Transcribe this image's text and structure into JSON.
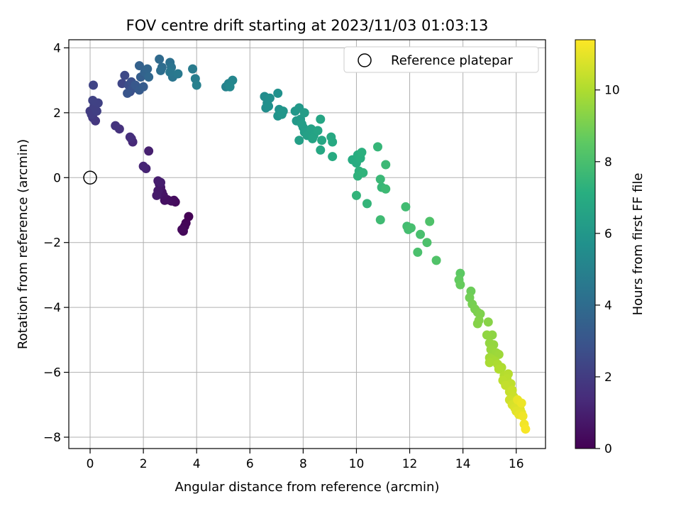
{
  "chart_data": {
    "type": "scatter",
    "title": "FOV centre drift starting at 2023/11/03 01:03:13",
    "xlabel": "Angular distance from reference (arcmin)",
    "ylabel": "Rotation from reference (arcmin)",
    "xlim": [
      -0.8,
      17.1
    ],
    "ylim": [
      -8.35,
      4.25
    ],
    "xticks": [
      0,
      2,
      4,
      6,
      8,
      10,
      12,
      14,
      16
    ],
    "yticks": [
      -8,
      -6,
      -4,
      -2,
      0,
      2,
      4
    ],
    "grid": true,
    "legend": {
      "position": "top-right",
      "entries": [
        "Reference platepar"
      ]
    },
    "reference_point": {
      "x": 0,
      "y": 0
    },
    "colorbar": {
      "label": "Hours from first FF file",
      "range": [
        0,
        11.4
      ],
      "ticks": [
        0,
        2,
        4,
        6,
        8,
        10
      ],
      "colormap": "viridis"
    },
    "points": [
      {
        "x": 3.7,
        "y": -1.2,
        "t": 0.05
      },
      {
        "x": 3.6,
        "y": -1.4,
        "t": 0.1
      },
      {
        "x": 3.55,
        "y": -1.5,
        "t": 0.15
      },
      {
        "x": 3.5,
        "y": -1.65,
        "t": 0.2
      },
      {
        "x": 3.45,
        "y": -1.6,
        "t": 0.25
      },
      {
        "x": 3.2,
        "y": -0.75,
        "t": 0.3
      },
      {
        "x": 3.15,
        "y": -0.7,
        "t": 0.35
      },
      {
        "x": 3.05,
        "y": -0.72,
        "t": 0.4
      },
      {
        "x": 2.9,
        "y": -0.68,
        "t": 0.45
      },
      {
        "x": 2.8,
        "y": -0.7,
        "t": 0.5
      },
      {
        "x": 2.75,
        "y": -0.55,
        "t": 0.55
      },
      {
        "x": 2.7,
        "y": -0.45,
        "t": 0.6
      },
      {
        "x": 2.6,
        "y": -0.5,
        "t": 0.65
      },
      {
        "x": 2.65,
        "y": -0.3,
        "t": 0.7
      },
      {
        "x": 2.6,
        "y": -0.2,
        "t": 0.75
      },
      {
        "x": 2.55,
        "y": -0.4,
        "t": 0.8
      },
      {
        "x": 2.5,
        "y": -0.55,
        "t": 0.85
      },
      {
        "x": 2.55,
        "y": -0.1,
        "t": 0.9
      },
      {
        "x": 2.65,
        "y": -0.15,
        "t": 0.95
      },
      {
        "x": 2.2,
        "y": 0.82,
        "t": 1.0
      },
      {
        "x": 2.1,
        "y": 0.28,
        "t": 1.1
      },
      {
        "x": 2.0,
        "y": 0.35,
        "t": 1.2
      },
      {
        "x": 1.6,
        "y": 1.1,
        "t": 1.3
      },
      {
        "x": 1.55,
        "y": 1.2,
        "t": 1.4
      },
      {
        "x": 1.5,
        "y": 1.25,
        "t": 1.5
      },
      {
        "x": 1.1,
        "y": 1.5,
        "t": 1.6
      },
      {
        "x": 0.95,
        "y": 1.6,
        "t": 1.7
      },
      {
        "x": 0.2,
        "y": 1.75,
        "t": 1.8
      },
      {
        "x": 0.1,
        "y": 1.85,
        "t": 1.9
      },
      {
        "x": 0.0,
        "y": 2.05,
        "t": 2.0
      },
      {
        "x": 0.05,
        "y": 1.95,
        "t": 2.05
      },
      {
        "x": 0.25,
        "y": 2.05,
        "t": 2.1
      },
      {
        "x": 0.15,
        "y": 2.2,
        "t": 2.15
      },
      {
        "x": 0.3,
        "y": 2.3,
        "t": 2.2
      },
      {
        "x": 0.1,
        "y": 2.38,
        "t": 2.25
      },
      {
        "x": 0.12,
        "y": 2.85,
        "t": 2.3
      },
      {
        "x": 1.2,
        "y": 2.9,
        "t": 2.4
      },
      {
        "x": 1.3,
        "y": 3.15,
        "t": 2.5
      },
      {
        "x": 1.5,
        "y": 2.65,
        "t": 2.6
      },
      {
        "x": 1.45,
        "y": 2.85,
        "t": 2.7
      },
      {
        "x": 1.55,
        "y": 2.95,
        "t": 2.8
      },
      {
        "x": 1.6,
        "y": 2.75,
        "t": 2.9
      },
      {
        "x": 1.4,
        "y": 2.6,
        "t": 3.0
      },
      {
        "x": 1.7,
        "y": 2.85,
        "t": 3.1
      },
      {
        "x": 1.85,
        "y": 2.7,
        "t": 3.2
      },
      {
        "x": 2.0,
        "y": 2.8,
        "t": 3.3
      },
      {
        "x": 1.9,
        "y": 3.1,
        "t": 3.4
      },
      {
        "x": 1.85,
        "y": 3.45,
        "t": 3.5
      },
      {
        "x": 2.05,
        "y": 3.25,
        "t": 3.6
      },
      {
        "x": 2.15,
        "y": 3.35,
        "t": 3.7
      },
      {
        "x": 2.2,
        "y": 3.1,
        "t": 3.8
      },
      {
        "x": 2.6,
        "y": 3.65,
        "t": 3.9
      },
      {
        "x": 2.7,
        "y": 3.4,
        "t": 4.0
      },
      {
        "x": 2.65,
        "y": 3.3,
        "t": 4.1
      },
      {
        "x": 3.0,
        "y": 3.55,
        "t": 4.2
      },
      {
        "x": 3.05,
        "y": 3.4,
        "t": 4.3
      },
      {
        "x": 3.1,
        "y": 3.1,
        "t": 4.4
      },
      {
        "x": 3.0,
        "y": 3.25,
        "t": 4.5
      },
      {
        "x": 3.3,
        "y": 3.2,
        "t": 4.6
      },
      {
        "x": 3.85,
        "y": 3.35,
        "t": 4.7
      },
      {
        "x": 3.95,
        "y": 3.05,
        "t": 4.8
      },
      {
        "x": 4.0,
        "y": 2.85,
        "t": 4.9
      },
      {
        "x": 5.1,
        "y": 2.8,
        "t": 5.0
      },
      {
        "x": 5.2,
        "y": 2.9,
        "t": 5.1
      },
      {
        "x": 5.35,
        "y": 3.0,
        "t": 5.2
      },
      {
        "x": 5.25,
        "y": 2.8,
        "t": 5.3
      },
      {
        "x": 6.55,
        "y": 2.5,
        "t": 5.45
      },
      {
        "x": 6.6,
        "y": 2.15,
        "t": 5.5
      },
      {
        "x": 6.65,
        "y": 2.3,
        "t": 5.55
      },
      {
        "x": 6.75,
        "y": 2.45,
        "t": 5.6
      },
      {
        "x": 6.7,
        "y": 2.2,
        "t": 5.65
      },
      {
        "x": 7.05,
        "y": 2.6,
        "t": 5.7
      },
      {
        "x": 7.1,
        "y": 2.1,
        "t": 5.75
      },
      {
        "x": 7.05,
        "y": 1.9,
        "t": 5.8
      },
      {
        "x": 7.15,
        "y": 2.0,
        "t": 5.85
      },
      {
        "x": 7.25,
        "y": 2.05,
        "t": 5.9
      },
      {
        "x": 7.2,
        "y": 1.95,
        "t": 5.95
      },
      {
        "x": 7.7,
        "y": 2.05,
        "t": 6.0
      },
      {
        "x": 7.85,
        "y": 2.15,
        "t": 6.05
      },
      {
        "x": 7.75,
        "y": 1.75,
        "t": 6.1
      },
      {
        "x": 7.9,
        "y": 1.8,
        "t": 6.15
      },
      {
        "x": 8.0,
        "y": 1.55,
        "t": 6.2
      },
      {
        "x": 8.05,
        "y": 2.0,
        "t": 6.25
      },
      {
        "x": 7.95,
        "y": 1.65,
        "t": 6.3
      },
      {
        "x": 8.05,
        "y": 1.4,
        "t": 6.35
      },
      {
        "x": 7.85,
        "y": 1.15,
        "t": 6.4
      },
      {
        "x": 8.15,
        "y": 1.3,
        "t": 6.45
      },
      {
        "x": 8.3,
        "y": 1.5,
        "t": 6.5
      },
      {
        "x": 8.4,
        "y": 1.3,
        "t": 6.55
      },
      {
        "x": 8.35,
        "y": 1.2,
        "t": 6.6
      },
      {
        "x": 8.55,
        "y": 1.45,
        "t": 6.65
      },
      {
        "x": 8.65,
        "y": 1.8,
        "t": 6.7
      },
      {
        "x": 8.7,
        "y": 1.15,
        "t": 6.75
      },
      {
        "x": 8.65,
        "y": 0.85,
        "t": 6.8
      },
      {
        "x": 9.05,
        "y": 1.25,
        "t": 6.85
      },
      {
        "x": 9.1,
        "y": 1.1,
        "t": 6.9
      },
      {
        "x": 9.1,
        "y": 0.65,
        "t": 6.95
      },
      {
        "x": 9.85,
        "y": 0.55,
        "t": 7.0
      },
      {
        "x": 10.0,
        "y": 0.45,
        "t": 7.05
      },
      {
        "x": 10.05,
        "y": 0.7,
        "t": 7.1
      },
      {
        "x": 10.15,
        "y": 0.6,
        "t": 7.15
      },
      {
        "x": 10.2,
        "y": 0.78,
        "t": 7.2
      },
      {
        "x": 10.1,
        "y": 0.2,
        "t": 7.25
      },
      {
        "x": 10.05,
        "y": 0.05,
        "t": 7.3
      },
      {
        "x": 10.25,
        "y": 0.15,
        "t": 7.35
      },
      {
        "x": 10.0,
        "y": -0.55,
        "t": 7.4
      },
      {
        "x": 10.4,
        "y": -0.8,
        "t": 7.45
      },
      {
        "x": 10.8,
        "y": 0.95,
        "t": 7.5
      },
      {
        "x": 10.95,
        "y": -0.3,
        "t": 7.55
      },
      {
        "x": 10.9,
        "y": -0.05,
        "t": 7.6
      },
      {
        "x": 11.1,
        "y": 0.4,
        "t": 7.65
      },
      {
        "x": 11.1,
        "y": -0.35,
        "t": 7.7
      },
      {
        "x": 10.9,
        "y": -1.3,
        "t": 7.75
      },
      {
        "x": 11.85,
        "y": -0.9,
        "t": 7.8
      },
      {
        "x": 11.9,
        "y": -1.5,
        "t": 7.85
      },
      {
        "x": 11.95,
        "y": -1.6,
        "t": 7.9
      },
      {
        "x": 12.05,
        "y": -1.55,
        "t": 7.95
      },
      {
        "x": 12.4,
        "y": -1.75,
        "t": 8.0
      },
      {
        "x": 12.3,
        "y": -2.3,
        "t": 8.05
      },
      {
        "x": 12.65,
        "y": -2.0,
        "t": 8.1
      },
      {
        "x": 12.75,
        "y": -1.35,
        "t": 8.15
      },
      {
        "x": 13.0,
        "y": -2.55,
        "t": 8.2
      },
      {
        "x": 13.9,
        "y": -2.95,
        "t": 8.5
      },
      {
        "x": 13.85,
        "y": -3.15,
        "t": 8.6
      },
      {
        "x": 13.9,
        "y": -3.3,
        "t": 8.7
      },
      {
        "x": 14.3,
        "y": -3.5,
        "t": 8.8
      },
      {
        "x": 14.25,
        "y": -3.7,
        "t": 8.9
      },
      {
        "x": 14.35,
        "y": -3.9,
        "t": 9.0
      },
      {
        "x": 14.45,
        "y": -4.05,
        "t": 9.05
      },
      {
        "x": 14.55,
        "y": -4.15,
        "t": 9.1
      },
      {
        "x": 14.65,
        "y": -4.2,
        "t": 9.15
      },
      {
        "x": 14.6,
        "y": -4.4,
        "t": 9.2
      },
      {
        "x": 14.55,
        "y": -4.5,
        "t": 9.25
      },
      {
        "x": 14.95,
        "y": -4.45,
        "t": 9.3
      },
      {
        "x": 15.1,
        "y": -4.85,
        "t": 9.4
      },
      {
        "x": 14.9,
        "y": -4.85,
        "t": 9.45
      },
      {
        "x": 15.0,
        "y": -5.1,
        "t": 9.5
      },
      {
        "x": 15.15,
        "y": -5.15,
        "t": 9.55
      },
      {
        "x": 15.05,
        "y": -5.3,
        "t": 9.6
      },
      {
        "x": 15.25,
        "y": -5.4,
        "t": 9.65
      },
      {
        "x": 15.35,
        "y": -5.45,
        "t": 9.7
      },
      {
        "x": 15.0,
        "y": -5.55,
        "t": 9.75
      },
      {
        "x": 15.1,
        "y": -5.6,
        "t": 9.8
      },
      {
        "x": 15.2,
        "y": -5.65,
        "t": 9.85
      },
      {
        "x": 15.0,
        "y": -5.7,
        "t": 9.9
      },
      {
        "x": 15.3,
        "y": -5.75,
        "t": 9.95
      },
      {
        "x": 15.45,
        "y": -5.85,
        "t": 10.0
      },
      {
        "x": 15.35,
        "y": -5.9,
        "t": 10.05
      },
      {
        "x": 15.55,
        "y": -6.1,
        "t": 10.1
      },
      {
        "x": 15.7,
        "y": -6.05,
        "t": 10.15
      },
      {
        "x": 15.65,
        "y": -6.2,
        "t": 10.2
      },
      {
        "x": 15.5,
        "y": -6.25,
        "t": 10.25
      },
      {
        "x": 15.8,
        "y": -6.35,
        "t": 10.3
      },
      {
        "x": 15.6,
        "y": -6.4,
        "t": 10.35
      },
      {
        "x": 15.75,
        "y": -6.6,
        "t": 10.4
      },
      {
        "x": 15.85,
        "y": -6.55,
        "t": 10.45
      },
      {
        "x": 15.9,
        "y": -6.75,
        "t": 10.5
      },
      {
        "x": 15.75,
        "y": -6.85,
        "t": 10.55
      },
      {
        "x": 15.95,
        "y": -6.9,
        "t": 10.6
      },
      {
        "x": 16.05,
        "y": -6.95,
        "t": 10.65
      },
      {
        "x": 15.85,
        "y": -7.0,
        "t": 10.7
      },
      {
        "x": 16.1,
        "y": -7.05,
        "t": 10.75
      },
      {
        "x": 15.95,
        "y": -7.1,
        "t": 10.8
      },
      {
        "x": 16.15,
        "y": -7.15,
        "t": 10.85
      },
      {
        "x": 16.0,
        "y": -7.2,
        "t": 10.9
      },
      {
        "x": 16.2,
        "y": -7.25,
        "t": 10.95
      },
      {
        "x": 16.1,
        "y": -7.3,
        "t": 11.0
      },
      {
        "x": 16.05,
        "y": -6.85,
        "t": 11.05
      },
      {
        "x": 16.2,
        "y": -6.95,
        "t": 11.1
      },
      {
        "x": 16.25,
        "y": -7.35,
        "t": 11.15
      },
      {
        "x": 16.3,
        "y": -7.6,
        "t": 11.2
      },
      {
        "x": 16.35,
        "y": -7.75,
        "t": 11.3
      }
    ]
  }
}
